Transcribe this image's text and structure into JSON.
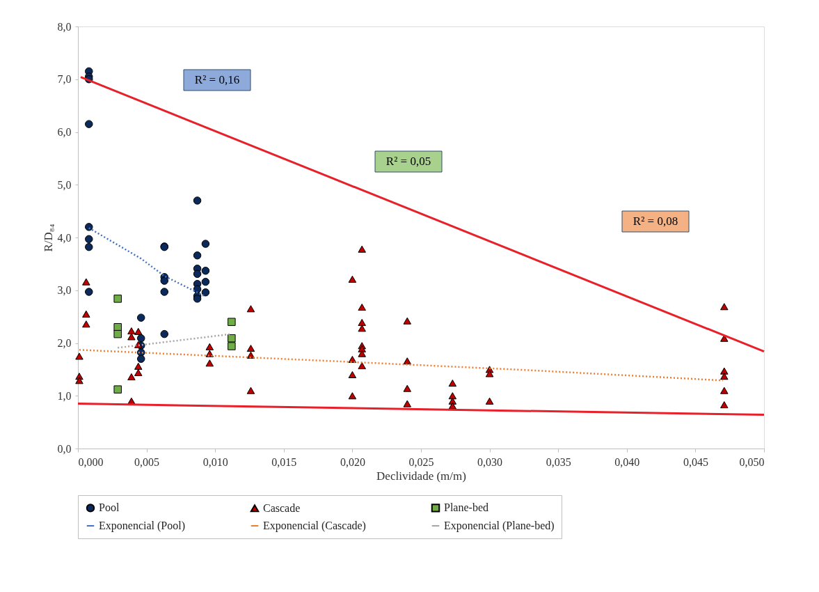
{
  "chart_data": {
    "type": "scatter",
    "xlabel": "Declividade (m/m)",
    "ylabel": "R/D₈₄",
    "xlim": [
      0,
      0.05
    ],
    "ylim": [
      0,
      8
    ],
    "xticks": [
      {
        "value": 0,
        "label": "0,000"
      },
      {
        "value": 0.005,
        "label": "0,005"
      },
      {
        "value": 0.01,
        "label": "0,010"
      },
      {
        "value": 0.015,
        "label": "0,015"
      },
      {
        "value": 0.02,
        "label": "0,020"
      },
      {
        "value": 0.025,
        "label": "0,025"
      },
      {
        "value": 0.03,
        "label": "0,030"
      },
      {
        "value": 0.035,
        "label": "0,035"
      },
      {
        "value": 0.04,
        "label": "0,040"
      },
      {
        "value": 0.045,
        "label": "0,045"
      },
      {
        "value": 0.05,
        "label": "0,050"
      }
    ],
    "yticks": [
      {
        "value": 0,
        "label": "0,0"
      },
      {
        "value": 1,
        "label": "1,0"
      },
      {
        "value": 2,
        "label": "2,0"
      },
      {
        "value": 3,
        "label": "3,0"
      },
      {
        "value": 4,
        "label": "4,0"
      },
      {
        "value": 5,
        "label": "5,0"
      },
      {
        "value": 6,
        "label": "6,0"
      },
      {
        "value": 7,
        "label": "7,0"
      },
      {
        "value": 8,
        "label": "8,0"
      }
    ],
    "grid": false,
    "legend": "bottom",
    "annotations": [
      "R² = 0,16",
      "R² = 0,05",
      "R² = 0,08"
    ],
    "series": [
      {
        "name": "Pool",
        "marker": "circle",
        "color": "#0b2a5b",
        "x": [
          0.0008,
          0.0008,
          0.0008,
          0.0008,
          0.0008,
          0.0008,
          0.0008,
          0.0008,
          0.0046,
          0.0046,
          0.0046,
          0.0046,
          0.0046,
          0.0063,
          0.0063,
          0.0063,
          0.0063,
          0.0063,
          0.0063,
          0.0087,
          0.0087,
          0.0087,
          0.0087,
          0.0087,
          0.0087,
          0.0087,
          0.0087,
          0.0093,
          0.0093,
          0.0093,
          0.0093
        ],
        "values": [
          7.15,
          7.05,
          7.0,
          6.15,
          4.2,
          3.97,
          3.82,
          2.97,
          2.48,
          2.09,
          1.95,
          1.82,
          1.7,
          3.83,
          3.82,
          3.25,
          3.18,
          2.97,
          2.17,
          4.7,
          3.66,
          3.41,
          3.31,
          3.12,
          3.02,
          2.89,
          2.84,
          3.88,
          3.37,
          3.16,
          2.96
        ]
      },
      {
        "name": "Cascade",
        "marker": "triangle",
        "color": "#c00000",
        "x": [
          0.0001,
          0.0001,
          0.0001,
          0.0006,
          0.0006,
          0.0006,
          0.0039,
          0.0039,
          0.0039,
          0.0039,
          0.0044,
          0.0044,
          0.0044,
          0.0044,
          0.0096,
          0.0096,
          0.0096,
          0.0126,
          0.0126,
          0.0126,
          0.0126,
          0.02,
          0.02,
          0.02,
          0.02,
          0.0207,
          0.0207,
          0.0207,
          0.0207,
          0.0207,
          0.0207,
          0.0207,
          0.0207,
          0.024,
          0.024,
          0.024,
          0.024,
          0.0273,
          0.0273,
          0.0273,
          0.0273,
          0.03,
          0.03,
          0.03,
          0.0471,
          0.0471,
          0.0471,
          0.0471,
          0.0471,
          0.0471
        ],
        "values": [
          1.75,
          1.37,
          1.29,
          3.16,
          2.55,
          2.36,
          2.23,
          2.12,
          1.36,
          0.9,
          2.22,
          1.97,
          1.56,
          1.44,
          1.93,
          1.8,
          1.62,
          2.65,
          1.9,
          1.77,
          1.1,
          3.21,
          1.69,
          1.4,
          1.0,
          3.78,
          2.68,
          2.39,
          2.28,
          1.95,
          1.89,
          1.8,
          1.57,
          2.42,
          1.66,
          1.14,
          0.85,
          1.24,
          1.0,
          0.9,
          0.81,
          1.5,
          1.42,
          0.9,
          2.69,
          2.09,
          1.47,
          1.37,
          1.1,
          0.83
        ]
      },
      {
        "name": "Plane-bed",
        "marker": "square",
        "color": "#70ad47",
        "x": [
          0.0029,
          0.0029,
          0.0029,
          0.0029,
          0.0112,
          0.0112,
          0.0112
        ],
        "values": [
          2.84,
          2.3,
          2.17,
          1.12,
          2.4,
          2.09,
          1.94
        ]
      },
      {
        "name": "Exponencial (Pool)",
        "type": "line",
        "line_style": "dotted",
        "color": "#4472c4",
        "x": [
          0.0008,
          0.0046,
          0.0063,
          0.0093
        ],
        "values": [
          4.18,
          3.6,
          3.27,
          2.88
        ]
      },
      {
        "name": "Exponencial (Cascade)",
        "type": "line",
        "line_style": "dotted",
        "color": "#ed7d31",
        "x": [
          0.0001,
          0.0183,
          0.0325,
          0.047
        ],
        "values": [
          1.87,
          1.66,
          1.49,
          1.29
        ]
      },
      {
        "name": "Exponencial (Plane-bed)",
        "type": "line",
        "line_style": "dotted",
        "color": "#a5a5a5",
        "x": [
          0.0029,
          0.0112
        ],
        "values": [
          1.91,
          2.17
        ]
      },
      {
        "type": "line",
        "line_style": "solid",
        "color": "#e8202a",
        "x": [
          0.0002,
          0.05
        ],
        "values": [
          7.04,
          1.84
        ]
      },
      {
        "type": "line",
        "line_style": "solid",
        "color": "#e8202a",
        "x": [
          0.0,
          0.05
        ],
        "values": [
          0.85,
          0.64
        ]
      }
    ]
  }
}
